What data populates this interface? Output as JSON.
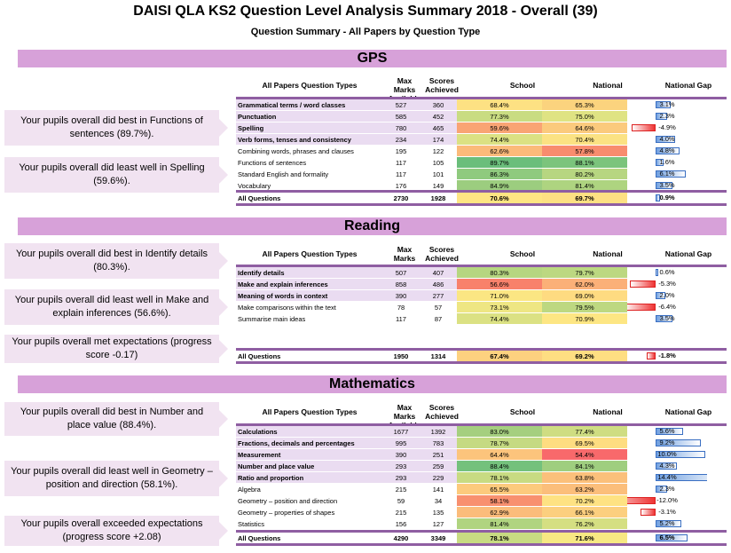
{
  "title": "DAISI QLA KS2 Question Level Analysis Summary 2018 - Overall (39)",
  "subtitle": "Question Summary - All Papers by Question Type",
  "headers": {
    "types": "All Papers Question Types",
    "max": "Max Marks Available",
    "scores": "Scores Achieved",
    "school": "School",
    "national": "National",
    "gap": "National Gap"
  },
  "sections": [
    {
      "name": "GPS",
      "callouts": [
        "Your pupils overall did best in Functions of sentences (89.7%).",
        "Your pupils overall did least well in Spelling (59.6%)."
      ],
      "rows": [
        {
          "label": "Grammatical terms / word classes",
          "max": "527",
          "scores": "360",
          "school": "68.4%",
          "national": "65.3%",
          "gap": "3.1%",
          "gapv": 3.1,
          "bold": true,
          "sc": "#fde183",
          "nc": "#fbd37e"
        },
        {
          "label": "Punctuation",
          "max": "585",
          "scores": "452",
          "school": "77.3%",
          "national": "75.0%",
          "gap": "2.3%",
          "gapv": 2.3,
          "bold": true,
          "sc": "#c9dc82",
          "nc": "#dfe383"
        },
        {
          "label": "Spelling",
          "max": "780",
          "scores": "465",
          "school": "59.6%",
          "national": "64.6%",
          "gap": "-4.9%",
          "gapv": -4.9,
          "bold": true,
          "sc": "#f9a474",
          "nc": "#fbca7d"
        },
        {
          "label": "Verb forms, tenses and consistency",
          "max": "234",
          "scores": "174",
          "school": "74.4%",
          "national": "70.4%",
          "gap": "4.0%",
          "gapv": 4.0,
          "bold": true,
          "sc": "#dbe183",
          "nc": "#fbe283"
        },
        {
          "label": "Combining words, phrases and clauses",
          "max": "195",
          "scores": "122",
          "school": "62.6%",
          "national": "57.8%",
          "gap": "4.8%",
          "gapv": 4.8,
          "bold": false,
          "sc": "#fbba7a",
          "nc": "#f88c6e"
        },
        {
          "label": "Functions of sentences",
          "max": "117",
          "scores": "105",
          "school": "89.7%",
          "national": "88.1%",
          "gap": "1.6%",
          "gapv": 1.6,
          "bold": false,
          "sc": "#6abe7b",
          "nc": "#7bc47c"
        },
        {
          "label": "Standard English and formality",
          "max": "117",
          "scores": "101",
          "school": "86.3%",
          "national": "80.2%",
          "gap": "6.1%",
          "gapv": 6.1,
          "bold": false,
          "sc": "#8fca7e",
          "nc": "#b7d681"
        },
        {
          "label": "Vocabulary",
          "max": "176",
          "scores": "149",
          "school": "84.9%",
          "national": "81.4%",
          "gap": "3.5%",
          "gapv": 3.5,
          "bold": false,
          "sc": "#9ccd7f",
          "nc": "#aed480"
        }
      ],
      "all": {
        "label": "All Questions",
        "max": "2730",
        "scores": "1928",
        "school": "70.6%",
        "national": "69.7%",
        "gap": "0.9%",
        "gapv": 0.9,
        "sc": "#fee583",
        "nc": "#fde083"
      }
    },
    {
      "name": "Reading",
      "callouts": [
        "Your pupils overall did best in Identify details (80.3%).",
        "Your pupils overall did least well in Make and explain inferences (56.6%).",
        "Your pupils overall met expectations (progress score -0.17)"
      ],
      "rows": [
        {
          "label": "Identify details",
          "max": "507",
          "scores": "407",
          "school": "80.3%",
          "national": "79.7%",
          "gap": "0.6%",
          "gapv": 0.6,
          "bold": true,
          "sc": "#b6d680",
          "nc": "#bcd881"
        },
        {
          "label": "Make and explain inferences",
          "max": "858",
          "scores": "486",
          "school": "56.6%",
          "national": "62.0%",
          "gap": "-5.3%",
          "gapv": -5.3,
          "bold": true,
          "sc": "#f8816b",
          "nc": "#fbb078"
        },
        {
          "label": "Meaning of words in context",
          "max": "390",
          "scores": "277",
          "school": "71.0%",
          "national": "69.0%",
          "gap": "2.0%",
          "gapv": 2.0,
          "bold": true,
          "sc": "#fbe683",
          "nc": "#fedb81"
        },
        {
          "label": "Make comparisons within the text",
          "max": "78",
          "scores": "57",
          "school": "73.1%",
          "national": "79.5%",
          "gap": "-6.4%",
          "gapv": -6.4,
          "bold": false,
          "sc": "#eee683",
          "nc": "#bdd881"
        },
        {
          "label": "Summarise main ideas",
          "max": "117",
          "scores": "87",
          "school": "74.4%",
          "national": "70.9%",
          "gap": "3.5%",
          "gapv": 3.5,
          "bold": false,
          "sc": "#dbe183",
          "nc": "#fde683"
        }
      ],
      "all": {
        "label": "All Questions",
        "max": "1950",
        "scores": "1314",
        "school": "67.4%",
        "national": "69.2%",
        "gap": "-1.8%",
        "gapv": -1.8,
        "sc": "#fdd17f",
        "nc": "#fede82"
      }
    },
    {
      "name": "Mathematics",
      "callouts": [
        "Your pupils overall did best in Number and place value (88.4%).",
        "Your pupils overall did least well in Geometry – position and direction (58.1%).",
        "Your pupils overall exceeded expectations (progress score +2.08)"
      ],
      "rows": [
        {
          "label": "Calculations",
          "max": "1677",
          "scores": "1392",
          "school": "83.0%",
          "national": "77.4%",
          "gap": "5.6%",
          "gapv": 5.6,
          "bold": true,
          "sc": "#a5cf7f",
          "nc": "#cfdd82"
        },
        {
          "label": "Fractions, decimals and percentages",
          "max": "995",
          "scores": "783",
          "school": "78.7%",
          "national": "69.5%",
          "gap": "9.2%",
          "gapv": 9.2,
          "bold": true,
          "sc": "#c5da82",
          "nc": "#fedd81"
        },
        {
          "label": "Measurement",
          "max": "390",
          "scores": "251",
          "school": "64.4%",
          "national": "54.4%",
          "gap": "10.0%",
          "gapv": 10.0,
          "bold": true,
          "sc": "#fcc47c",
          "nc": "#f8696b"
        },
        {
          "label": "Number and place value",
          "max": "293",
          "scores": "259",
          "school": "88.4%",
          "national": "84.1%",
          "gap": "4.3%",
          "gapv": 4.3,
          "bold": true,
          "sc": "#74c17c",
          "nc": "#9fce7f"
        },
        {
          "label": "Ratio and proportion",
          "max": "293",
          "scores": "229",
          "school": "78.1%",
          "national": "63.8%",
          "gap": "14.4%",
          "gapv": 14.4,
          "bold": true,
          "sc": "#c8db82",
          "nc": "#fbc07b"
        },
        {
          "label": "Algebra",
          "max": "215",
          "scores": "141",
          "school": "65.5%",
          "national": "63.2%",
          "gap": "2.3%",
          "gapv": 2.3,
          "bold": false,
          "sc": "#fcca7d",
          "nc": "#fbbe7b"
        },
        {
          "label": "Geometry – position and direction",
          "max": "59",
          "scores": "34",
          "school": "58.1%",
          "national": "70.2%",
          "gap": "-12.0%",
          "gapv": -12.0,
          "bold": false,
          "sc": "#f8906f",
          "nc": "#fee283"
        },
        {
          "label": "Geometry – properties of shapes",
          "max": "215",
          "scores": "135",
          "school": "62.9%",
          "national": "66.1%",
          "gap": "-3.1%",
          "gapv": -3.1,
          "bold": false,
          "sc": "#fbbc7b",
          "nc": "#fccf7f"
        },
        {
          "label": "Statistics",
          "max": "156",
          "scores": "127",
          "school": "81.4%",
          "national": "76.2%",
          "gap": "5.2%",
          "gapv": 5.2,
          "bold": false,
          "sc": "#b0d480",
          "nc": "#d5df82"
        }
      ],
      "all": {
        "label": "All Questions",
        "max": "4290",
        "scores": "3349",
        "school": "78.1%",
        "national": "71.6%",
        "gap": "6.5%",
        "gapv": 6.5,
        "sc": "#c8db82",
        "nc": "#f7e883"
      }
    }
  ]
}
